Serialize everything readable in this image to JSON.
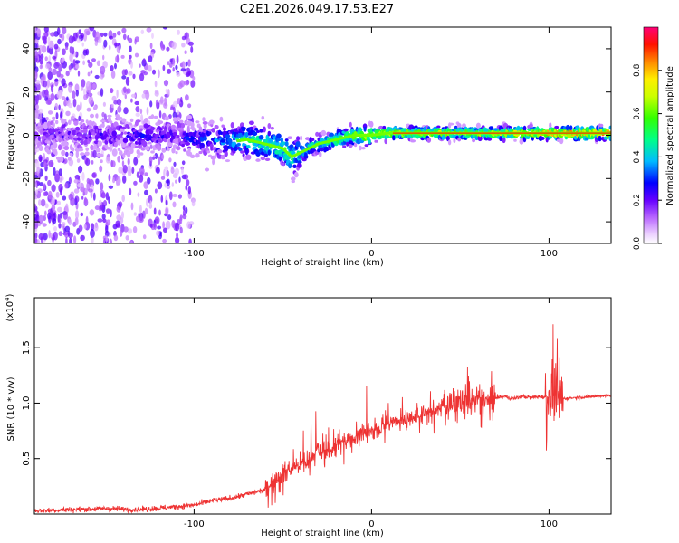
{
  "title": "C2E1.2026.049.17.53.E27",
  "chart_data": [
    {
      "type": "heatmap",
      "xlabel": "Height of straight line (km)",
      "ylabel": "Frequency (Hz)",
      "xlim": [
        -190,
        135
      ],
      "ylim": [
        -50,
        50
      ],
      "xticks": [
        -100,
        0,
        100
      ],
      "yticks": [
        -40,
        -20,
        0,
        20,
        40
      ],
      "colorbar": {
        "label": "Normalized spectral amplitude",
        "range": [
          0,
          1
        ],
        "ticks": [
          "0.0",
          "0.2",
          "0.4",
          "0.6",
          "0.8"
        ],
        "colors": [
          "#ffffff",
          "#cc66ff",
          "#6600ff",
          "#0000ff",
          "#00ccff",
          "#00ff66",
          "#66ff00",
          "#ffff00",
          "#ff8800",
          "#ff0000",
          "#ff0088"
        ]
      },
      "track": {
        "description_values": "dominant frequency (Hz) vs height (km)",
        "x": [
          -190,
          -160,
          -130,
          -110,
          -95,
          -80,
          -70,
          -60,
          -50,
          -45,
          -40,
          -30,
          -20,
          -10,
          0,
          10,
          20,
          40,
          60,
          80,
          95,
          100,
          110,
          135
        ],
        "y": [
          0,
          0,
          0,
          0,
          -2,
          -3,
          -2,
          -4,
          -6,
          -10,
          -8,
          -4,
          -2,
          0,
          0,
          1,
          1,
          1,
          1,
          1,
          1,
          1,
          1,
          1
        ],
        "amplitude": [
          0.25,
          0.25,
          0.3,
          0.3,
          0.35,
          0.45,
          0.55,
          0.55,
          0.6,
          0.6,
          0.55,
          0.55,
          0.6,
          0.7,
          0.8,
          0.8,
          0.75,
          0.75,
          0.75,
          0.8,
          0.85,
          0.9,
          0.95,
          0.95
        ]
      }
    },
    {
      "type": "line",
      "xlabel": "Height of straight line (km)",
      "ylabel": "SNR (10 * v/v)",
      "exponent_label": "(x10",
      "exponent_power": "4",
      "exponent_close": ")",
      "xlim": [
        -190,
        135
      ],
      "ylim": [
        0,
        1.95
      ],
      "xticks": [
        -100,
        0,
        100
      ],
      "yticks": [
        "0.5",
        "1.0",
        "1.5"
      ],
      "series": [
        {
          "name": "SNR",
          "color": "#ee3333",
          "x": [
            -190,
            -170,
            -150,
            -130,
            -115,
            -100,
            -90,
            -80,
            -70,
            -60,
            -55,
            -50,
            -45,
            -40,
            -35,
            -30,
            -25,
            -20,
            -15,
            -10,
            -5,
            0,
            5,
            10,
            15,
            20,
            25,
            30,
            35,
            40,
            45,
            50,
            55,
            60,
            65,
            70,
            75,
            80,
            85,
            90,
            95,
            100,
            103,
            105,
            108,
            115,
            125,
            135
          ],
          "y": [
            0.03,
            0.04,
            0.05,
            0.04,
            0.06,
            0.08,
            0.12,
            0.14,
            0.18,
            0.22,
            0.3,
            0.36,
            0.42,
            0.45,
            0.5,
            0.58,
            0.55,
            0.62,
            0.66,
            0.68,
            0.72,
            0.75,
            0.78,
            0.82,
            0.84,
            0.86,
            0.88,
            0.9,
            0.92,
            0.98,
            0.99,
            1.0,
            1.0,
            1.02,
            1.0,
            1.05,
            1.06,
            1.04,
            1.06,
            1.05,
            1.06,
            1.05,
            1.06,
            1.04,
            1.04,
            1.05,
            1.06,
            1.07
          ]
        }
      ]
    }
  ]
}
